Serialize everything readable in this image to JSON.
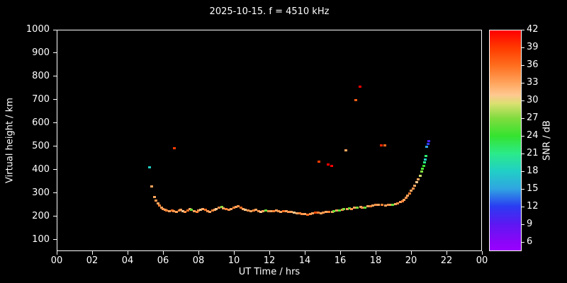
{
  "title": "2025-10-15. f = 4510 kHz",
  "axes": {
    "x_label": "UT Time / hrs",
    "y_label": "Virtual height / km",
    "x_tick_values": [
      0,
      2,
      4,
      6,
      8,
      10,
      12,
      14,
      16,
      18,
      20,
      22,
      24
    ],
    "x_tick_labels": [
      "00",
      "02",
      "04",
      "06",
      "08",
      "10",
      "12",
      "14",
      "16",
      "18",
      "20",
      "22",
      "00"
    ],
    "y_tick_values": [
      100,
      200,
      300,
      400,
      500,
      600,
      700,
      800,
      900,
      1000
    ],
    "y_tick_labels": [
      "100",
      "200",
      "300",
      "400",
      "500",
      "600",
      "700",
      "800",
      "900",
      "1000"
    ]
  },
  "colorbar": {
    "label": "SNR / dB",
    "vmin": 4.5,
    "vmax": 42,
    "tick_values": [
      42,
      39,
      36,
      33,
      30,
      27,
      24,
      21,
      18,
      15,
      12,
      9,
      6
    ],
    "tick_labels": [
      "42",
      "39",
      "36",
      "33",
      "30",
      "27",
      "24",
      "21",
      "18",
      "15",
      "12",
      "9",
      "6"
    ],
    "stops": [
      {
        "v": 42,
        "c": "#ff0000"
      },
      {
        "v": 39,
        "c": "#ff3b00"
      },
      {
        "v": 36,
        "c": "#ff6e1e"
      },
      {
        "v": 33,
        "c": "#ffa55e"
      },
      {
        "v": 31,
        "c": "#ffc890"
      },
      {
        "v": 29.5,
        "c": "#d9e070"
      },
      {
        "v": 27,
        "c": "#7fdc3e"
      },
      {
        "v": 24,
        "c": "#35e32f"
      },
      {
        "v": 21,
        "c": "#2bea8a"
      },
      {
        "v": 18,
        "c": "#21cfc6"
      },
      {
        "v": 15,
        "c": "#2fa5e1"
      },
      {
        "v": 12,
        "c": "#2a3cf2"
      },
      {
        "v": 9,
        "c": "#5d18f2"
      },
      {
        "v": 6,
        "c": "#8a06f8"
      },
      {
        "v": 4.5,
        "c": "#9a00ff"
      }
    ]
  },
  "chart_data": {
    "type": "scatter",
    "title": "2025-10-15. f = 4510 kHz",
    "xlabel": "UT Time / hrs",
    "ylabel": "Virtual height / km",
    "color_label": "SNR / dB",
    "xlim": [
      0,
      24
    ],
    "ylim": [
      50,
      1000
    ],
    "grid": false,
    "point_format": [
      "time_hours",
      "virtual_height_km",
      "snr_db"
    ],
    "points": [
      [
        5.25,
        410,
        18
      ],
      [
        5.35,
        328,
        33
      ],
      [
        5.5,
        285,
        33
      ],
      [
        5.6,
        268,
        34
      ],
      [
        5.7,
        256,
        33
      ],
      [
        5.8,
        246,
        35
      ],
      [
        5.9,
        238,
        33
      ],
      [
        6.0,
        232,
        34
      ],
      [
        6.1,
        228,
        33
      ],
      [
        6.2,
        226,
        35
      ],
      [
        6.35,
        223,
        33
      ],
      [
        6.5,
        227,
        36
      ],
      [
        6.6,
        224,
        34
      ],
      [
        6.65,
        492,
        39
      ],
      [
        6.75,
        221,
        33
      ],
      [
        6.9,
        225,
        35
      ],
      [
        7.0,
        229,
        33
      ],
      [
        7.1,
        224,
        31
      ],
      [
        7.25,
        219,
        34
      ],
      [
        7.4,
        225,
        36
      ],
      [
        7.5,
        231,
        33
      ],
      [
        7.6,
        228,
        26
      ],
      [
        7.75,
        222,
        33
      ],
      [
        7.9,
        219,
        35
      ],
      [
        8.0,
        225,
        34
      ],
      [
        8.1,
        229,
        31
      ],
      [
        8.25,
        233,
        33
      ],
      [
        8.4,
        228,
        36
      ],
      [
        8.5,
        224,
        34
      ],
      [
        8.65,
        221,
        33
      ],
      [
        8.8,
        225,
        35
      ],
      [
        8.9,
        229,
        33
      ],
      [
        9.0,
        233,
        31
      ],
      [
        9.15,
        237,
        34
      ],
      [
        9.3,
        240,
        27
      ],
      [
        9.4,
        236,
        33
      ],
      [
        9.55,
        232,
        35
      ],
      [
        9.7,
        228,
        34
      ],
      [
        9.85,
        231,
        33
      ],
      [
        10.0,
        237,
        35
      ],
      [
        10.1,
        241,
        33
      ],
      [
        10.25,
        244,
        34
      ],
      [
        10.4,
        239,
        36
      ],
      [
        10.5,
        233,
        33
      ],
      [
        10.65,
        228,
        31
      ],
      [
        10.8,
        225,
        34
      ],
      [
        10.95,
        223,
        33
      ],
      [
        11.1,
        226,
        35
      ],
      [
        11.25,
        228,
        33
      ],
      [
        11.4,
        224,
        34
      ],
      [
        11.5,
        221,
        31
      ],
      [
        11.65,
        223,
        33
      ],
      [
        11.8,
        226,
        26
      ],
      [
        11.95,
        224,
        34
      ],
      [
        12.1,
        222,
        33
      ],
      [
        12.25,
        224,
        35
      ],
      [
        12.4,
        226,
        33
      ],
      [
        12.5,
        222,
        34
      ],
      [
        12.65,
        220,
        33
      ],
      [
        12.8,
        222,
        36
      ],
      [
        12.95,
        224,
        33
      ],
      [
        13.1,
        221,
        34
      ],
      [
        13.25,
        219,
        33
      ],
      [
        13.4,
        217,
        31
      ],
      [
        13.55,
        215,
        33
      ],
      [
        13.7,
        213,
        35
      ],
      [
        13.85,
        211,
        34
      ],
      [
        14.0,
        211,
        33
      ],
      [
        14.15,
        209,
        36
      ],
      [
        14.3,
        211,
        34
      ],
      [
        14.45,
        213,
        33
      ],
      [
        14.6,
        216,
        38
      ],
      [
        14.75,
        218,
        35
      ],
      [
        14.8,
        435,
        39
      ],
      [
        14.9,
        215,
        33
      ],
      [
        15.05,
        217,
        34
      ],
      [
        15.2,
        219,
        33
      ],
      [
        15.3,
        424,
        42
      ],
      [
        15.35,
        221,
        35
      ],
      [
        15.5,
        418,
        42
      ],
      [
        15.55,
        219,
        33
      ],
      [
        15.65,
        223,
        26
      ],
      [
        15.8,
        227,
        33
      ],
      [
        15.95,
        225,
        25
      ],
      [
        16.1,
        229,
        34
      ],
      [
        16.2,
        233,
        27
      ],
      [
        16.3,
        484,
        33
      ],
      [
        16.4,
        231,
        33
      ],
      [
        16.5,
        235,
        26
      ],
      [
        16.65,
        233,
        34
      ],
      [
        16.8,
        237,
        33
      ],
      [
        16.9,
        700,
        37
      ],
      [
        16.95,
        239,
        27
      ],
      [
        17.1,
        758,
        42
      ],
      [
        17.15,
        241,
        33
      ],
      [
        17.25,
        237,
        34
      ],
      [
        17.4,
        239,
        26
      ],
      [
        17.55,
        243,
        33
      ],
      [
        17.7,
        245,
        35
      ],
      [
        17.85,
        247,
        33
      ],
      [
        18.0,
        249,
        34
      ],
      [
        18.15,
        251,
        33
      ],
      [
        18.3,
        505,
        40
      ],
      [
        18.35,
        249,
        35
      ],
      [
        18.5,
        505,
        36
      ],
      [
        18.55,
        247,
        33
      ],
      [
        18.7,
        249,
        34
      ],
      [
        18.85,
        251,
        33
      ],
      [
        18.95,
        249,
        26
      ],
      [
        19.1,
        253,
        33
      ],
      [
        19.25,
        257,
        34
      ],
      [
        19.4,
        261,
        33
      ],
      [
        19.5,
        266,
        35
      ],
      [
        19.6,
        272,
        33
      ],
      [
        19.7,
        280,
        34
      ],
      [
        19.8,
        290,
        33
      ],
      [
        19.9,
        300,
        35
      ],
      [
        20.0,
        310,
        33
      ],
      [
        20.1,
        320,
        34
      ],
      [
        20.2,
        332,
        33
      ],
      [
        20.3,
        346,
        31
      ],
      [
        20.4,
        360,
        33
      ],
      [
        20.5,
        375,
        29
      ],
      [
        20.6,
        392,
        27
      ],
      [
        20.65,
        405,
        25
      ],
      [
        20.7,
        418,
        24
      ],
      [
        20.75,
        432,
        21
      ],
      [
        20.8,
        445,
        18
      ],
      [
        20.85,
        460,
        22
      ],
      [
        20.9,
        498,
        15
      ],
      [
        20.95,
        512,
        12
      ],
      [
        21.0,
        524,
        10
      ]
    ]
  }
}
